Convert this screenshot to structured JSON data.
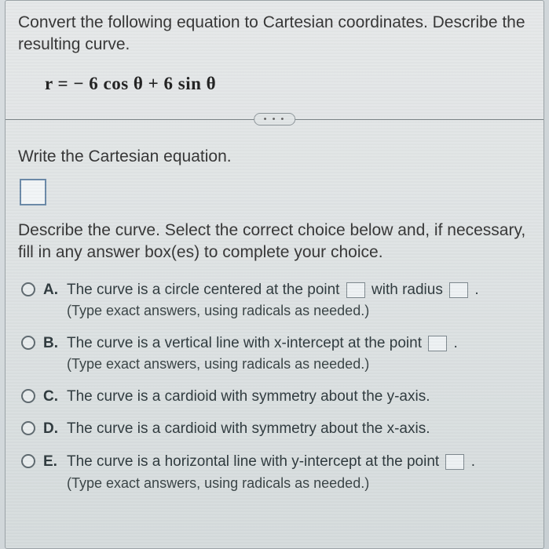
{
  "question": {
    "prompt": "Convert the following equation to Cartesian coordinates. Describe the resulting curve.",
    "equation": "r = − 6 cos θ + 6 sin θ"
  },
  "separator_dots": "• • •",
  "section1": {
    "heading": "Write the Cartesian equation."
  },
  "section2": {
    "heading": "Describe the curve. Select the correct choice below and, if necessary, fill in any answer box(es) to complete your choice."
  },
  "choices": [
    {
      "letter": "A.",
      "pre": "The curve is a circle centered at the point",
      "mid": "with radius",
      "post": ".",
      "hint": "(Type exact answers, using radicals as needed.)",
      "blanks": 2
    },
    {
      "letter": "B.",
      "pre": "The curve is a vertical line with x-intercept at the point",
      "post": ".",
      "hint": "(Type exact answers, using radicals as needed.)",
      "blanks": 1
    },
    {
      "letter": "C.",
      "pre": "The curve is a cardioid with symmetry about the y-axis.",
      "blanks": 0
    },
    {
      "letter": "D.",
      "pre": "The curve is a cardioid with symmetry about the x-axis.",
      "blanks": 0
    },
    {
      "letter": "E.",
      "pre": "The curve is a horizontal line with y-intercept at the point",
      "post": ".",
      "hint": "(Type exact answers, using radicals as needed.)",
      "blanks": 1
    }
  ],
  "colors": {
    "panel_border": "#9aa2a6",
    "input_border": "#6b8aa8",
    "radio_border": "#5f6a70",
    "text": "#2a2a2a"
  }
}
